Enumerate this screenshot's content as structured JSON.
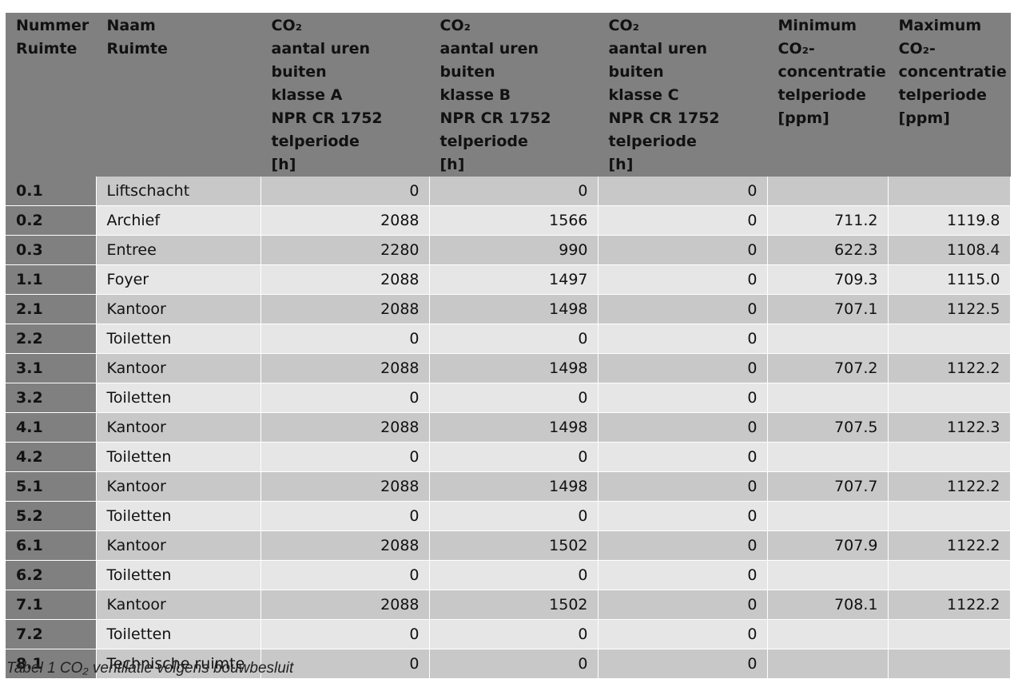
{
  "table": {
    "headers": [
      [
        "Nummer",
        "Ruimte"
      ],
      [
        "Naam",
        "Ruimte"
      ],
      [
        "CO₂",
        "aantal uren buiten",
        "klasse A",
        "NPR CR 1752",
        "telperiode",
        "[h]"
      ],
      [
        "CO₂",
        "aantal uren buiten",
        "klasse B",
        "NPR CR 1752",
        "telperiode",
        "[h]"
      ],
      [
        "CO₂",
        "aantal uren buiten",
        "klasse C",
        "NPR CR 1752",
        "telperiode",
        "[h]"
      ],
      [
        "Minimum",
        "CO₂-",
        "concentratie",
        "telperiode",
        "[ppm]"
      ],
      [
        "Maximum",
        "CO₂-",
        "concentratie",
        "telperiode",
        "[ppm]"
      ]
    ],
    "rows": [
      [
        "0.1",
        "Liftschacht",
        "0",
        "0",
        "0",
        "",
        ""
      ],
      [
        "0.2",
        "Archief",
        "2088",
        "1566",
        "0",
        "711.2",
        "1119.8"
      ],
      [
        "0.3",
        "Entree",
        "2280",
        "990",
        "0",
        "622.3",
        "1108.4"
      ],
      [
        "1.1",
        "Foyer",
        "2088",
        "1497",
        "0",
        "709.3",
        "1115.0"
      ],
      [
        "2.1",
        "Kantoor",
        "2088",
        "1498",
        "0",
        "707.1",
        "1122.5"
      ],
      [
        "2.2",
        "Toiletten",
        "0",
        "0",
        "0",
        "",
        ""
      ],
      [
        "3.1",
        "Kantoor",
        "2088",
        "1498",
        "0",
        "707.2",
        "1122.2"
      ],
      [
        "3.2",
        "Toiletten",
        "0",
        "0",
        "0",
        "",
        ""
      ],
      [
        "4.1",
        "Kantoor",
        "2088",
        "1498",
        "0",
        "707.5",
        "1122.3"
      ],
      [
        "4.2",
        "Toiletten",
        "0",
        "0",
        "0",
        "",
        ""
      ],
      [
        "5.1",
        "Kantoor",
        "2088",
        "1498",
        "0",
        "707.7",
        "1122.2"
      ],
      [
        "5.2",
        "Toiletten",
        "0",
        "0",
        "0",
        "",
        ""
      ],
      [
        "6.1",
        "Kantoor",
        "2088",
        "1502",
        "0",
        "707.9",
        "1122.2"
      ],
      [
        "6.2",
        "Toiletten",
        "0",
        "0",
        "0",
        "",
        ""
      ],
      [
        "7.1",
        "Kantoor",
        "2088",
        "1502",
        "0",
        "708.1",
        "1122.2"
      ],
      [
        "7.2",
        "Toiletten",
        "0",
        "0",
        "0",
        "",
        ""
      ],
      [
        "8.1",
        "Technische ruimte",
        "0",
        "0",
        "0",
        "",
        ""
      ]
    ]
  },
  "caption": "Tabel 1 CO₂ ventilatie volgens bouwbesluit",
  "colors": {
    "header_bg": "#808080",
    "row_dark": "#c8c8c8",
    "row_light": "#e6e6e6"
  }
}
